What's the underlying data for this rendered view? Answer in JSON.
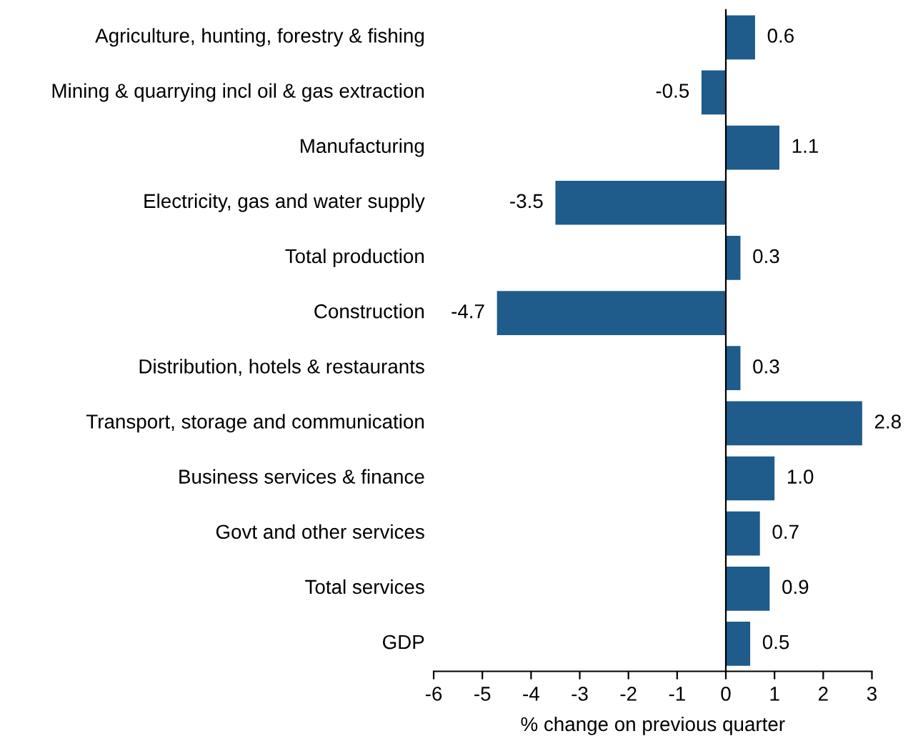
{
  "chart_data": {
    "type": "bar",
    "orientation": "horizontal",
    "categories": [
      "Agriculture, hunting, forestry & fishing",
      "Mining & quarrying incl oil & gas extraction",
      "Manufacturing",
      "Electricity, gas and water supply",
      "Total production",
      "Construction",
      "Distribution, hotels & restaurants",
      "Transport, storage and communication",
      "Business services & finance",
      "Govt and other services",
      "Total services",
      "GDP"
    ],
    "values": [
      0.6,
      -0.5,
      1.1,
      -3.5,
      0.3,
      -4.7,
      0.3,
      2.8,
      1.0,
      0.7,
      0.9,
      0.5
    ],
    "value_labels": [
      "0.6",
      "-0.5",
      "1.1",
      "-3.5",
      "0.3",
      "-4.7",
      "0.3",
      "2.8",
      "1.0",
      "0.7",
      "0.9",
      "0.5"
    ],
    "color": "#1f5b8b",
    "xlabel": "% change on previous quarter",
    "xlim": [
      -6,
      3
    ],
    "xticks": [
      -6,
      -5,
      -4,
      -3,
      -2,
      -1,
      0,
      1,
      2,
      3
    ],
    "legend": false
  }
}
